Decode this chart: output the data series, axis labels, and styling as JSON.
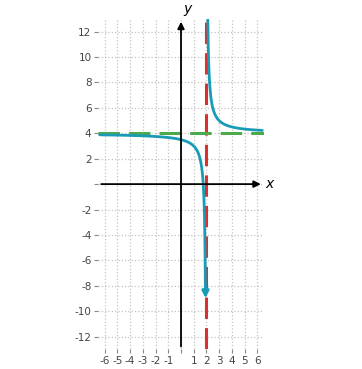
{
  "title": "",
  "xlabel": "x",
  "ylabel": "y",
  "xlim": [
    -6.5,
    6.5
  ],
  "ylim": [
    -13,
    13
  ],
  "xticks": [
    -6,
    -5,
    -4,
    -3,
    -2,
    -1,
    1,
    2,
    3,
    4,
    5,
    6
  ],
  "yticks": [
    -12,
    -10,
    -8,
    -6,
    -4,
    -2,
    2,
    4,
    6,
    8,
    10,
    12
  ],
  "vertical_asymptote": 2,
  "horizontal_asymptote": 4,
  "curve_color": "#1a9bb5",
  "vasym_color": "#d93030",
  "hasym_color": "#4caa4c",
  "curve_lw": 2.0,
  "asym_lw": 2.2,
  "background_color": "#ffffff",
  "grid_color": "#aaaaaa",
  "grid_alpha": 0.7,
  "figsize": [
    3.62,
    3.69
  ],
  "dpi": 100
}
